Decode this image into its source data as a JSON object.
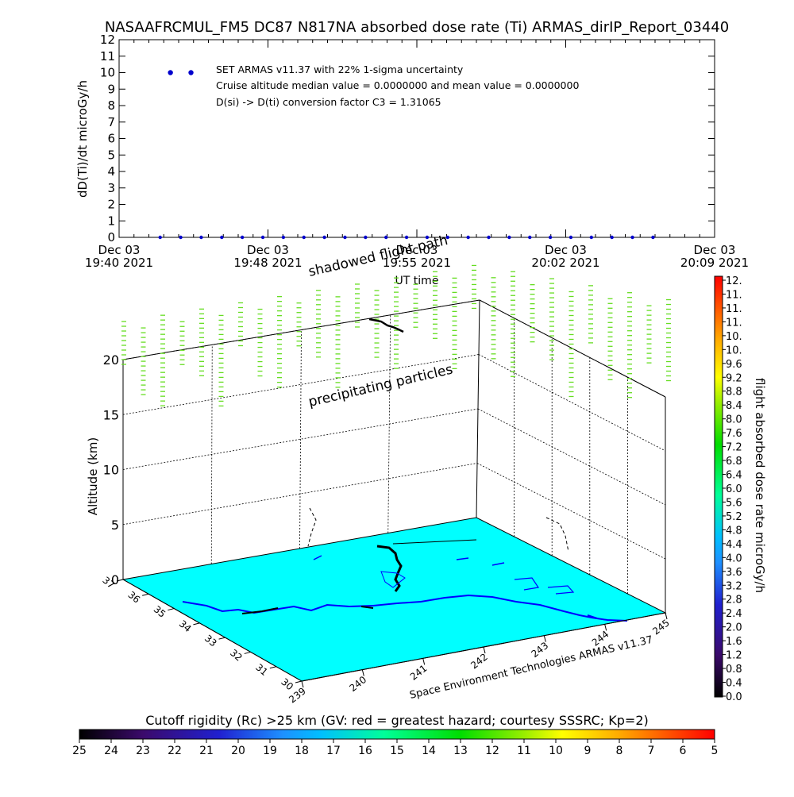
{
  "title": "NASAAFRCMUL_FM5 DC87 N817NA absorbed dose rate (Ti) ARMAS_dirIP_Report_03440",
  "top_chart": {
    "ylabel": "dD(Ti)/dt microGy/h",
    "xlabel": "UT time",
    "annotations": [
      "SET ARMAS v11.37 with 22% 1-sigma uncertainty",
      "Cruise altitude median value = 0.0000000 and mean value = 0.0000000",
      "D(si) -> D(ti) conversion factor C3 = 1.31065"
    ]
  },
  "threed": {
    "ylabel": "Altitude (km)",
    "annot_shadowed": "shadowed flight path",
    "annot_precip": "precipitating particles",
    "credit": "Space Environment Technologies ARMAS v11.37"
  },
  "right_colorbar": {
    "label": "flight absorbed dose rate microGy/h",
    "ticks": [
      "0.0",
      "0.4",
      "0.8",
      "1.2",
      "1.6",
      "2.0",
      "2.4",
      "2.8",
      "3.2",
      "3.6",
      "4.0",
      "4.4",
      "4.8",
      "5.2",
      "5.6",
      "6.0",
      "6.4",
      "6.8",
      "7.2",
      "7.6",
      "8.0",
      "8.4",
      "8.8",
      "9.2",
      "9.6",
      "10.",
      "10.",
      "11.",
      "11.",
      "11.",
      "12."
    ]
  },
  "bottom_colorbar": {
    "label": "Cutoff rigidity (Rc) >25 km (GV: red = greatest hazard; courtesy SSSRC; Kp=2)",
    "ticks": [
      "25",
      "24",
      "23",
      "22",
      "21",
      "20",
      "19",
      "18",
      "17",
      "16",
      "15",
      "14",
      "13",
      "12",
      "11",
      "10",
      "9",
      "8",
      "7",
      "6",
      "5"
    ]
  },
  "colors": {
    "series": "#0000cc",
    "surface": "#00ffff",
    "coast": "#0000ff",
    "precip": "#66dd22",
    "track": "#000000"
  },
  "chart_data": [
    {
      "type": "scatter",
      "title": "NASAAFRCMUL_FM5 DC87 N817NA absorbed dose rate (Ti) ARMAS_dirIP_Report_03440",
      "xlabel": "UT time",
      "ylabel": "dD(Ti)/dt microGy/h",
      "ylim": [
        0,
        12
      ],
      "yticks": [
        "0",
        "1",
        "2",
        "3",
        "4",
        "5",
        "6",
        "7",
        "8",
        "9",
        "10",
        "11",
        "12"
      ],
      "xlim": [
        "Dec 03 2021 19:40",
        "Dec 03 2021 20:09"
      ],
      "xticks": [
        {
          "date": "Dec 03",
          "time": "19:40 2021"
        },
        {
          "date": "Dec 03",
          "time": "19:48 2021"
        },
        {
          "date": "Dec 03",
          "time": "19:55 2021"
        },
        {
          "date": "Dec 03",
          "time": "20:02 2021"
        },
        {
          "date": "Dec 03",
          "time": "20:09 2021"
        }
      ],
      "legend_markers": [
        {
          "x": "19:42:30",
          "y": 10
        },
        {
          "x": "19:43:30",
          "y": 10
        }
      ],
      "x": [
        "19:42:00",
        "19:43:00",
        "19:44:00",
        "19:45:00",
        "19:46:00",
        "19:47:00",
        "19:48:00",
        "19:49:00",
        "19:50:00",
        "19:51:00",
        "19:52:00",
        "19:53:00",
        "19:54:00",
        "19:55:00",
        "19:56:00",
        "19:57:00",
        "19:58:00",
        "19:59:00",
        "20:00:00",
        "20:01:00",
        "20:02:00",
        "20:03:00",
        "20:04:00",
        "20:05:00",
        "20:06:00"
      ],
      "values": [
        0,
        0,
        0,
        0,
        0,
        0,
        0,
        0,
        0,
        0,
        0,
        0,
        0,
        0,
        0,
        0,
        0,
        0,
        0,
        0,
        0,
        0,
        0,
        0,
        0
      ]
    },
    {
      "type": "scatter",
      "xlabel": "",
      "ylabel": "Altitude (km)",
      "zlim": [
        0,
        20
      ],
      "zticks": [
        "0",
        "5",
        "10",
        "15",
        "20"
      ],
      "lat_ticks": [
        "30",
        "31",
        "32",
        "33",
        "34",
        "35",
        "36",
        "37"
      ],
      "lon_ticks": [
        "239",
        "240",
        "241",
        "242",
        "243",
        "244",
        "245"
      ],
      "dose_rate": 0
    }
  ]
}
